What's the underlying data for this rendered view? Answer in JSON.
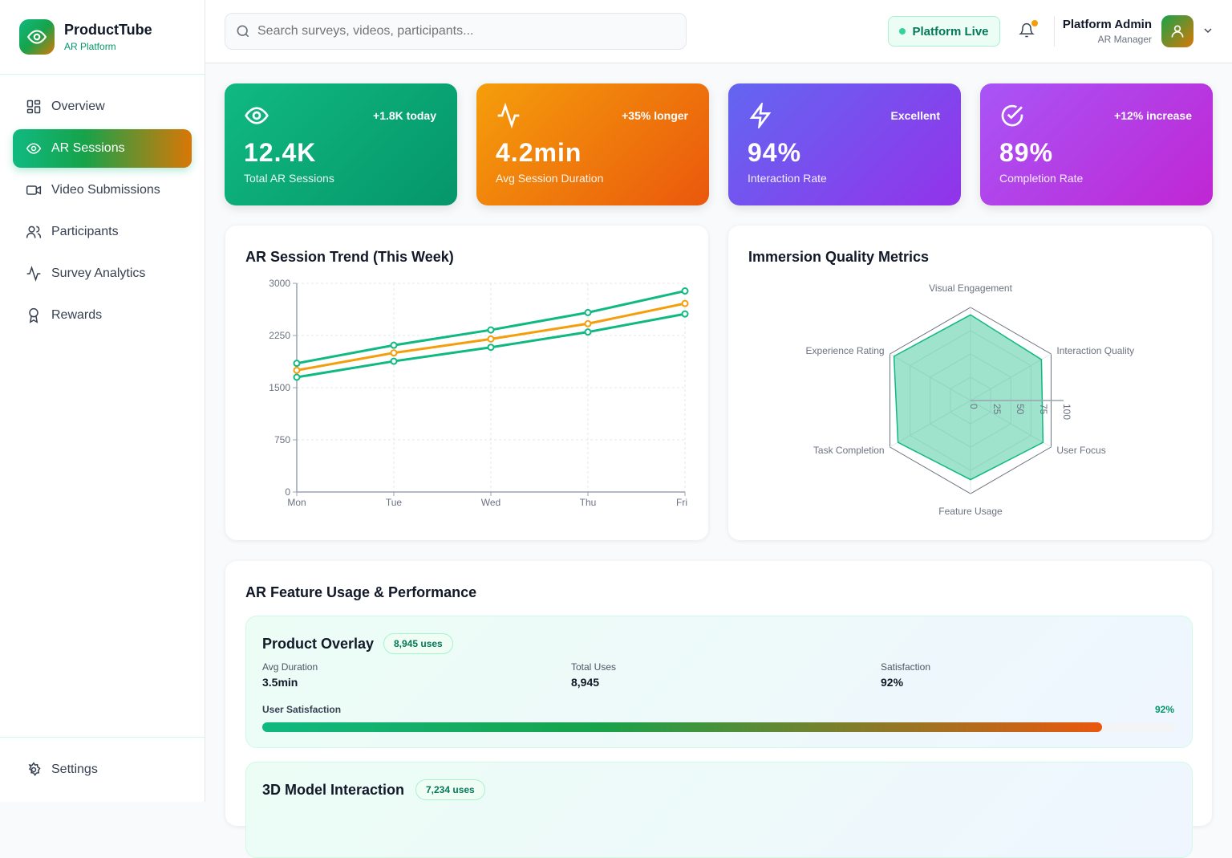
{
  "brand": {
    "name": "ProductTube",
    "sub": "AR Platform"
  },
  "sidebar": {
    "items": [
      {
        "label": "Overview",
        "icon": "grid-icon"
      },
      {
        "label": "AR Sessions",
        "icon": "eye-icon",
        "active": true
      },
      {
        "label": "Video Submissions",
        "icon": "video-icon"
      },
      {
        "label": "Participants",
        "icon": "users-icon"
      },
      {
        "label": "Survey Analytics",
        "icon": "activity-icon"
      },
      {
        "label": "Rewards",
        "icon": "award-icon"
      }
    ],
    "settings": "Settings"
  },
  "header": {
    "search_placeholder": "Search surveys, videos, participants...",
    "status": "Platform Live",
    "user_name": "Platform Admin",
    "user_role": "AR Manager"
  },
  "stats": [
    {
      "value": "12.4K",
      "label": "Total AR Sessions",
      "delta": "+1.8K today",
      "icon": "eye-icon",
      "colors": [
        "#10b981",
        "#059669"
      ]
    },
    {
      "value": "4.2min",
      "label": "Avg Session Duration",
      "delta": "+35% longer",
      "icon": "activity-icon",
      "colors": [
        "#f59e0b",
        "#ea580c"
      ]
    },
    {
      "value": "94%",
      "label": "Interaction Rate",
      "delta": "Excellent",
      "icon": "zap-icon",
      "colors": [
        "#6366f1",
        "#9333ea"
      ]
    },
    {
      "value": "89%",
      "label": "Completion Rate",
      "delta": "+12% increase",
      "icon": "check-circle-icon",
      "colors": [
        "#a855f7",
        "#c026d3"
      ]
    }
  ],
  "trend": {
    "title": "AR Session Trend (This Week)"
  },
  "radar": {
    "title": "Immersion Quality Metrics"
  },
  "chart_data": [
    {
      "type": "line",
      "categories": [
        "Mon",
        "Tue",
        "Wed",
        "Thu",
        "Fri"
      ],
      "ylim": [
        0,
        3000
      ],
      "yticks": [
        0,
        750,
        1500,
        2250,
        3000
      ],
      "grid": true,
      "series": [
        {
          "color": "#10b981",
          "values": [
            1850,
            2110,
            2330,
            2580,
            2890
          ]
        },
        {
          "color": "#f59e0b",
          "values": [
            1750,
            2000,
            2200,
            2420,
            2710
          ]
        },
        {
          "color": "#10b981",
          "values": [
            1650,
            1880,
            2080,
            2300,
            2560
          ]
        }
      ]
    },
    {
      "type": "radar",
      "categories": [
        "Visual Engagement",
        "Interaction Quality",
        "User Focus",
        "Feature Usage",
        "Task Completion",
        "Experience Rating"
      ],
      "rlim": [
        0,
        100
      ],
      "rticks": [
        0,
        25,
        50,
        75,
        100
      ],
      "values": [
        92,
        88,
        90,
        85,
        90,
        95
      ],
      "color": "#10b981"
    }
  ],
  "features": {
    "title": "AR Feature Usage & Performance",
    "items": [
      {
        "name": "Product Overlay",
        "badge": "8,945 uses",
        "metrics": [
          {
            "label": "Avg Duration",
            "value": "3.5min"
          },
          {
            "label": "Total Uses",
            "value": "8,945"
          },
          {
            "label": "Satisfaction",
            "value": "92%"
          }
        ],
        "bar_label": "User Satisfaction",
        "bar_value": "92%",
        "bar_percent": 92
      },
      {
        "name": "3D Model Interaction",
        "badge": "7,234 uses"
      }
    ]
  }
}
